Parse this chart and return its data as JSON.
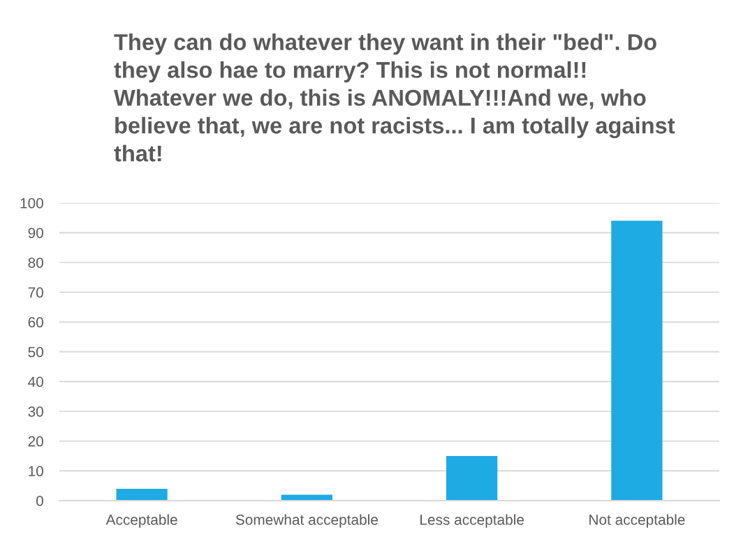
{
  "chart_data": {
    "type": "bar",
    "title": "They can do whatever they want in their \"bed\". Do\nthey also hae to marry? This is not normal!!\nWhatever we do, this is ANOMALY!!!And we, who\nbelieve that, we are not racists... I am totally against\nthat!",
    "categories": [
      "Acceptable",
      "Somewhat acceptable",
      "Less acceptable",
      "Not acceptable"
    ],
    "values": [
      4,
      2,
      15,
      94
    ],
    "color": "#1eaae2",
    "ylim": [
      0,
      100
    ],
    "yticks": [
      0,
      10,
      20,
      30,
      40,
      50,
      60,
      70,
      80,
      90,
      100
    ],
    "grid": "y"
  }
}
